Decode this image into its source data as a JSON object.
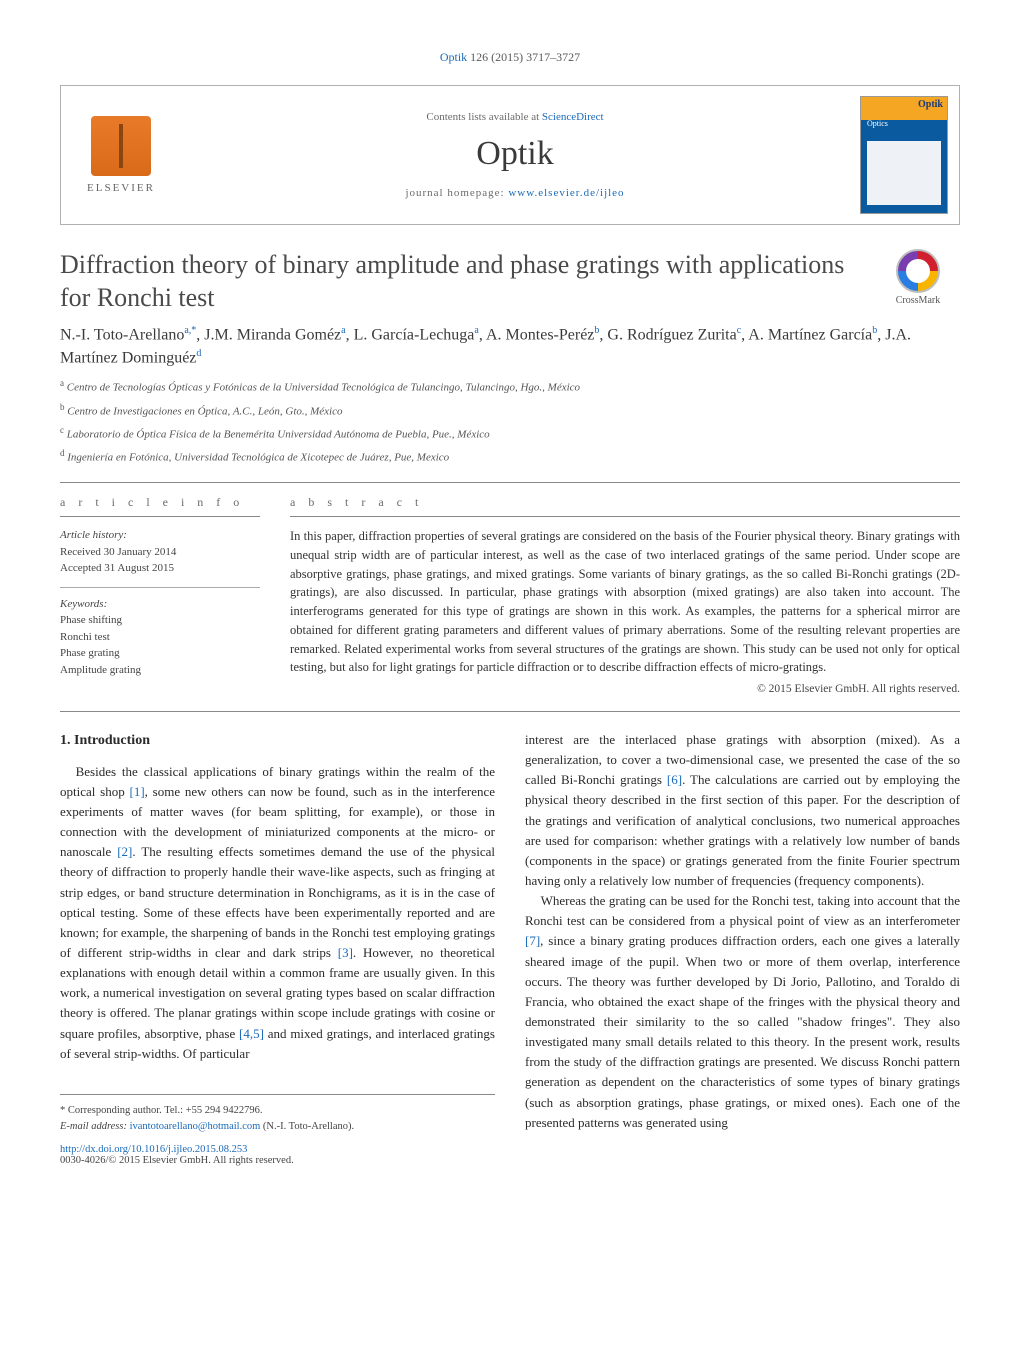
{
  "citation": {
    "journal_link": "Optik",
    "citation_text": " 126 (2015) 3717–3727"
  },
  "header": {
    "contents_prefix": "Contents lists available at ",
    "contents_link": "ScienceDirect",
    "journal_name": "Optik",
    "homepage_prefix": "journal homepage: ",
    "homepage_url": "www.elsevier.de/ijleo",
    "elsevier_text": "ELSEVIER",
    "cover_optik": "Optik",
    "cover_optics": "Optics"
  },
  "crossmark": {
    "label": "CrossMark"
  },
  "title": "Diffraction theory of binary amplitude and phase gratings with applications for Ronchi test",
  "authors_html": {
    "a1_name": "N.-I. Toto-Arellano",
    "a1_sup_a": "a,",
    "a1_sup_star": "*",
    "sep1": ", ",
    "a2_name": "J.M. Miranda Goméz",
    "a2_sup": "a",
    "sep2": ", ",
    "a3_name": "L. García-Lechuga",
    "a3_sup": "a",
    "sep3": ", ",
    "a4_name": "A. Montes-Peréz",
    "a4_sup": "b",
    "sep4": ", ",
    "a5_name": "G. Rodríguez Zurita",
    "a5_sup": "c",
    "sep5": ", ",
    "a6_name": "A. Martínez García",
    "a6_sup": "b",
    "sep6": ", ",
    "a7_name": "J.A. Martínez Dominguéz",
    "a7_sup": "d"
  },
  "affiliations": {
    "a": "Centro de Tecnologías Ópticas y Fotónicas de la Universidad Tecnológica de Tulancingo, Tulancingo, Hgo., México",
    "b": "Centro de Investigaciones en Óptica, A.C., León, Gto., México",
    "c": "Laboratorio de Óptica Física de la Benemérita Universidad Autónoma de Puebla, Pue., México",
    "d": "Ingeniería en Fotónica, Universidad Tecnológica de Xicotepec de Juárez, Pue, Mexico"
  },
  "article_info": {
    "header": "a r t i c l e   i n f o",
    "history_label": "Article history:",
    "received": "Received 30 January 2014",
    "accepted": "Accepted 31 August 2015",
    "keywords_label": "Keywords:",
    "kw1": "Phase shifting",
    "kw2": "Ronchi test",
    "kw3": "Phase grating",
    "kw4": "Amplitude grating"
  },
  "abstract": {
    "header": "a b s t r a c t",
    "text": "In this paper, diffraction properties of several gratings are considered on the basis of the Fourier physical theory. Binary gratings with unequal strip width are of particular interest, as well as the case of two interlaced gratings of the same period. Under scope are absorptive gratings, phase gratings, and mixed gratings. Some variants of binary gratings, as the so called Bi-Ronchi gratings (2D-gratings), are also discussed. In particular, phase gratings with absorption (mixed gratings) are also taken into account. The interferograms generated for this type of gratings are shown in this work. As examples, the patterns for a spherical mirror are obtained for different grating parameters and different values of primary aberrations. Some of the resulting relevant properties are remarked. Related experimental works from several structures of the gratings are shown. This study can be used not only for optical testing, but also for light gratings for particle diffraction or to describe diffraction effects of micro-gratings.",
    "copyright": "© 2015 Elsevier GmbH. All rights reserved."
  },
  "body": {
    "section_heading": "1.  Introduction",
    "col1_p1a": "Besides the classical applications of binary gratings within the realm of the optical shop ",
    "ref1": "[1]",
    "col1_p1b": ", some new others can now be found, such as in the interference experiments of matter waves (for beam splitting, for example), or those in connection with the development of miniaturized components at the micro- or nanoscale ",
    "ref2": "[2]",
    "col1_p1c": ". The resulting effects sometimes demand the use of the physical theory of diffraction to properly handle their wave-like aspects, such as fringing at strip edges, or band structure determination in Ronchigrams, as it is in the case of optical testing. Some of these effects have been experimentally reported and are known; for example, the sharpening of bands in the Ronchi test employing gratings of different strip-widths in clear and dark strips ",
    "ref3": "[3]",
    "col1_p1d": ". However, no theoretical explanations with enough detail within a common frame are usually given. In this work, a numerical investigation on several grating types based on scalar diffraction theory is offered. The planar gratings within scope include gratings with cosine or square profiles, absorptive, phase ",
    "ref45": "[4,5]",
    "col1_p1e": " and mixed gratings, and interlaced gratings of several strip-widths. Of particular",
    "col2_p1a": "interest are the interlaced phase gratings with absorption (mixed). As a generalization, to cover a two-dimensional case, we presented the case of the so called Bi-Ronchi gratings ",
    "ref6": "[6]",
    "col2_p1b": ". The calculations are carried out by employing the physical theory described in the first section of this paper. For the description of the gratings and verification of analytical conclusions, two numerical approaches are used for comparison: whether gratings with a relatively low number of bands (components in the space) or gratings generated from the finite Fourier spectrum having only a relatively low number of frequencies (frequency components).",
    "col2_p2a": "Whereas the grating can be used for the Ronchi test, taking into account that the Ronchi test can be considered from a physical point of view as an interferometer ",
    "ref7": "[7]",
    "col2_p2b": ", since a binary grating produces diffraction orders, each one gives a laterally sheared image of the pupil. When two or more of them overlap, interference occurs. The theory was further developed by Di Jorio, Pallotino, and Toraldo di Francia, who obtained the exact shape of the fringes with the physical theory and demonstrated their similarity to the so called \"shadow fringes\". They also investigated many small details related to this theory. In the present work, results from the study of the diffraction gratings are presented. We discuss Ronchi pattern generation as dependent on the characteristics of some types of binary gratings (such as absorption gratings, phase gratings, or mixed ones). Each one of the presented patterns was generated using"
  },
  "footer": {
    "corresponding_label": "* Corresponding author. Tel.: +55 294 9422796.",
    "email_label": "E-mail address: ",
    "email": "ivantotoarellano@hotmail.com",
    "email_suffix": " (N.-I. Toto-Arellano).",
    "doi_url": "http://dx.doi.org/10.1016/j.ijleo.2015.08.253",
    "issn_line": "0030-4026/© 2015 Elsevier GmbH. All rights reserved."
  },
  "colors": {
    "link": "#1a6ab8",
    "text": "#333333",
    "rule": "#888888",
    "elsevier_orange": "#e87a2a"
  }
}
